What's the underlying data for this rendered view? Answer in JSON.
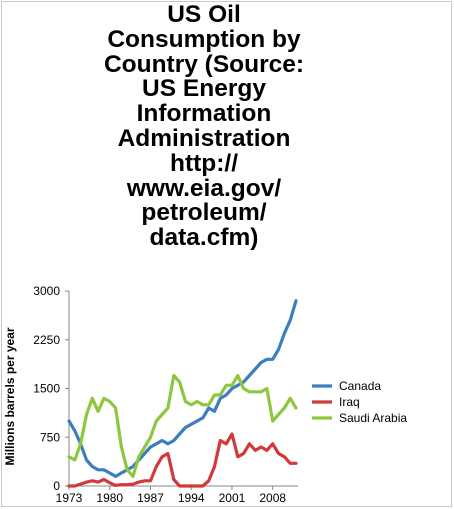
{
  "chart_data": {
    "type": "line",
    "title": "US Oil Consumption by Country (Source: US Energy Information Administration http:// www.eia.gov/ petroleum/ data.cfm)",
    "title_lines": [
      "US Oil",
      "Consumption by",
      "Country (Source:",
      "US Energy",
      "Information",
      "Administration",
      "http://",
      "www.eia.gov/",
      "petroleum/",
      "data.cfm)"
    ],
    "xlabel": "",
    "ylabel": "Millions barrels per year",
    "xlim": [
      1973,
      2012
    ],
    "ylim": [
      0,
      3000
    ],
    "yticks": [
      0,
      750,
      1500,
      2250,
      3000
    ],
    "xticks": [
      1973,
      1980,
      1987,
      1994,
      2001,
      2008
    ],
    "grid": false,
    "legend_position": "right",
    "x": [
      1973,
      1974,
      1975,
      1976,
      1977,
      1978,
      1979,
      1980,
      1981,
      1982,
      1983,
      1984,
      1985,
      1986,
      1987,
      1988,
      1989,
      1990,
      1991,
      1992,
      1993,
      1994,
      1995,
      1996,
      1997,
      1998,
      1999,
      2000,
      2001,
      2002,
      2003,
      2004,
      2005,
      2006,
      2007,
      2008,
      2009,
      2010,
      2011,
      2012
    ],
    "series": [
      {
        "name": "Canada",
        "color": "#3c7ec0",
        "values": [
          1000,
          850,
          650,
          400,
          300,
          250,
          250,
          200,
          150,
          200,
          250,
          300,
          400,
          500,
          600,
          650,
          700,
          650,
          700,
          800,
          900,
          950,
          1000,
          1050,
          1200,
          1150,
          1350,
          1400,
          1500,
          1550,
          1600,
          1700,
          1800,
          1900,
          1950,
          1950,
          2100,
          2350,
          2550,
          2850
        ]
      },
      {
        "name": "Iraq",
        "color": "#d03a3a",
        "values": [
          0,
          0,
          30,
          60,
          80,
          60,
          100,
          50,
          10,
          20,
          20,
          30,
          60,
          80,
          80,
          300,
          450,
          500,
          100,
          0,
          0,
          0,
          0,
          0,
          80,
          300,
          700,
          650,
          800,
          450,
          500,
          650,
          550,
          600,
          550,
          650,
          500,
          450,
          350,
          350
        ]
      },
      {
        "name": "Saudi Arabia",
        "color": "#8fc63f",
        "values": [
          450,
          400,
          650,
          1100,
          1350,
          1150,
          1350,
          1300,
          1200,
          600,
          250,
          150,
          450,
          600,
          750,
          1000,
          1100,
          1200,
          1700,
          1600,
          1300,
          1250,
          1300,
          1250,
          1250,
          1400,
          1400,
          1550,
          1550,
          1700,
          1500,
          1450,
          1450,
          1450,
          1500,
          1000,
          1100,
          1200,
          1350,
          1200
        ]
      }
    ]
  }
}
